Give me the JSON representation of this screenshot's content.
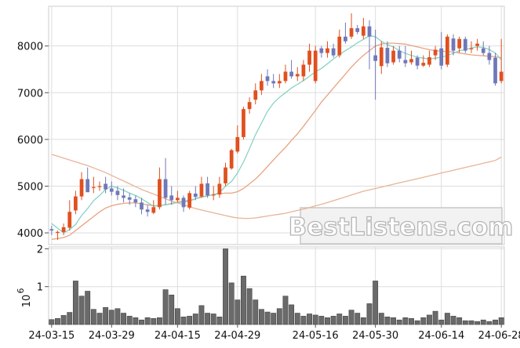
{
  "watermark": "BestListens.com",
  "chart_data": [
    {
      "type": "candlestick",
      "title": "",
      "xlabel": "",
      "ylabel": "",
      "x_tick_labels": [
        "24-03-15",
        "24-03-29",
        "24-04-15",
        "24-04-29",
        "24-05-16",
        "24-05-30",
        "24-06-14",
        "24-06-28"
      ],
      "y_ticks": [
        4000,
        5000,
        6000,
        7000,
        8000
      ],
      "ylim": [
        3750,
        8850
      ],
      "grid": true,
      "colors": {
        "up": "#e0501e",
        "down": "#6f78b8",
        "ma_short": "#86d4c4",
        "ma_mid": "#e8a482",
        "ma_long": "#e8b496",
        "grid": "#dddddd"
      },
      "dates": [
        "24-03-15",
        "24-03-18",
        "24-03-19",
        "24-03-20",
        "24-03-21",
        "24-03-22",
        "24-03-25",
        "24-03-26",
        "24-03-27",
        "24-03-28",
        "24-03-29",
        "24-04-01",
        "24-04-02",
        "24-04-03",
        "24-04-04",
        "24-04-05",
        "24-04-08",
        "24-04-09",
        "24-04-10",
        "24-04-11",
        "24-04-12",
        "24-04-15",
        "24-04-16",
        "24-04-17",
        "24-04-18",
        "24-04-19",
        "24-04-22",
        "24-04-23",
        "24-04-24",
        "24-04-25",
        "24-04-26",
        "24-04-29",
        "24-04-30",
        "24-05-01",
        "24-05-02",
        "24-05-03",
        "24-05-06",
        "24-05-07",
        "24-05-08",
        "24-05-09",
        "24-05-10",
        "24-05-13",
        "24-05-14",
        "24-05-15",
        "24-05-16",
        "24-05-17",
        "24-05-20",
        "24-05-21",
        "24-05-22",
        "24-05-23",
        "24-05-24",
        "24-05-27",
        "24-05-28",
        "24-05-29",
        "24-05-30",
        "24-05-31",
        "24-06-03",
        "24-06-04",
        "24-06-05",
        "24-06-06",
        "24-06-07",
        "24-06-10",
        "24-06-11",
        "24-06-12",
        "24-06-13",
        "24-06-14",
        "24-06-17",
        "24-06-18",
        "24-06-19",
        "24-06-20",
        "24-06-21",
        "24-06-24",
        "24-06-25",
        "24-06-26",
        "24-06-27",
        "24-06-28"
      ],
      "open": [
        4080,
        4020,
        4020,
        4110,
        4480,
        4780,
        5150,
        4980,
        4990,
        5050,
        4950,
        4900,
        4800,
        4760,
        4720,
        4650,
        4500,
        4430,
        4550,
        5150,
        4800,
        4700,
        4750,
        4540,
        4840,
        4780,
        5060,
        4800,
        4820,
        5060,
        5380,
        5740,
        6050,
        6650,
        6850,
        7050,
        7350,
        7250,
        7200,
        7250,
        7450,
        7350,
        7350,
        7600,
        7250,
        7950,
        7850,
        7950,
        7800,
        8200,
        8200,
        8380,
        8220,
        8420,
        7800,
        7570,
        7960,
        7650,
        7900,
        7700,
        7650,
        7750,
        7580,
        7600,
        7800,
        7950,
        7600,
        8160,
        7950,
        8150,
        7950,
        8000,
        7950,
        7850,
        7750,
        7250
      ],
      "close": [
        4050,
        4020,
        4120,
        4450,
        4780,
        5150,
        4870,
        4980,
        5000,
        4930,
        4880,
        4810,
        4750,
        4710,
        4650,
        4500,
        4450,
        4550,
        5150,
        4750,
        4700,
        4750,
        4550,
        4850,
        4770,
        5050,
        4800,
        4820,
        5050,
        5400,
        5770,
        6050,
        6650,
        6800,
        7050,
        7250,
        7250,
        7200,
        7250,
        7450,
        7350,
        7400,
        7600,
        7900,
        7900,
        7850,
        7950,
        7800,
        8200,
        8100,
        8380,
        8300,
        8420,
        8200,
        7680,
        7970,
        7630,
        7900,
        7730,
        7630,
        7720,
        7580,
        7640,
        7760,
        7920,
        7580,
        8200,
        7900,
        8150,
        7900,
        7950,
        8050,
        7850,
        7700,
        7200,
        7450
      ],
      "high": [
        4150,
        4050,
        4200,
        4700,
        4900,
        5300,
        5400,
        5200,
        5100,
        5200,
        5100,
        5000,
        4950,
        4850,
        4800,
        4750,
        4600,
        4700,
        5400,
        5600,
        5000,
        4900,
        4800,
        4900,
        5000,
        5200,
        5200,
        5000,
        5200,
        5500,
        5800,
        6300,
        6700,
        6900,
        7200,
        7400,
        7500,
        7400,
        7400,
        7600,
        7700,
        7550,
        7700,
        8050,
        8000,
        8000,
        8100,
        8050,
        8350,
        8500,
        8700,
        8450,
        8600,
        8550,
        8350,
        8100,
        8100,
        8000,
        8000,
        8000,
        7900,
        7800,
        7800,
        7900,
        8000,
        8300,
        8250,
        8250,
        8200,
        8200,
        8100,
        8150,
        8100,
        8000,
        7850,
        8150
      ],
      "low": [
        3950,
        3850,
        3950,
        4050,
        4400,
        4700,
        4900,
        4850,
        4900,
        4850,
        4800,
        4700,
        4650,
        4600,
        4550,
        4400,
        4350,
        4400,
        4500,
        4600,
        4600,
        4650,
        4450,
        4500,
        4700,
        4750,
        4750,
        4700,
        4750,
        5000,
        5350,
        5700,
        6000,
        6550,
        6750,
        6950,
        7150,
        7100,
        7100,
        7200,
        7300,
        7250,
        7250,
        7450,
        7200,
        7750,
        7750,
        7750,
        7750,
        8050,
        8150,
        8250,
        8150,
        7500,
        6850,
        7400,
        7550,
        7600,
        7650,
        7550,
        7600,
        7500,
        7550,
        7550,
        7700,
        7500,
        7550,
        7800,
        7850,
        7850,
        7850,
        7900,
        7800,
        7600,
        7150,
        7200
      ],
      "ma_short": [
        4200,
        4100,
        4000,
        4070,
        4180,
        4370,
        4520,
        4690,
        4800,
        4930,
        5000,
        4960,
        4910,
        4850,
        4800,
        4730,
        4650,
        4570,
        4580,
        4600,
        4620,
        4650,
        4660,
        4680,
        4730,
        4780,
        4790,
        4820,
        4860,
        5000,
        5100,
        5280,
        5520,
        5800,
        6100,
        6350,
        6600,
        6780,
        6900,
        7000,
        7100,
        7180,
        7260,
        7350,
        7450,
        7520,
        7620,
        7720,
        7820,
        7900,
        7980,
        8070,
        8140,
        8220,
        8200,
        8100,
        8030,
        7980,
        7900,
        7840,
        7800,
        7760,
        7740,
        7720,
        7740,
        7760,
        7800,
        7840,
        7900,
        7920,
        7960,
        7980,
        7970,
        7920,
        7850,
        7700
      ],
      "ma_mid": [
        3860,
        3880,
        3900,
        3950,
        4050,
        4150,
        4250,
        4350,
        4450,
        4530,
        4580,
        4610,
        4630,
        4640,
        4640,
        4620,
        4600,
        4580,
        4590,
        4600,
        4630,
        4660,
        4680,
        4700,
        4730,
        4760,
        4790,
        4820,
        4840,
        4850,
        4850,
        4880,
        4950,
        5050,
        5150,
        5280,
        5420,
        5560,
        5700,
        5830,
        5980,
        6120,
        6280,
        6450,
        6620,
        6800,
        6950,
        7100,
        7250,
        7400,
        7550,
        7680,
        7800,
        7900,
        8000,
        8040,
        8060,
        8060,
        8050,
        8040,
        8010,
        7980,
        7950,
        7920,
        7900,
        7890,
        7880,
        7870,
        7850,
        7830,
        7810,
        7800,
        7790,
        7780,
        7770,
        7750
      ],
      "ma_long": [
        5680,
        5640,
        5600,
        5560,
        5520,
        5480,
        5440,
        5390,
        5340,
        5290,
        5230,
        5170,
        5110,
        5050,
        4990,
        4930,
        4880,
        4830,
        4780,
        4730,
        4680,
        4640,
        4600,
        4560,
        4520,
        4490,
        4460,
        4430,
        4400,
        4370,
        4340,
        4320,
        4310,
        4310,
        4320,
        4340,
        4360,
        4380,
        4400,
        4420,
        4450,
        4480,
        4510,
        4540,
        4580,
        4610,
        4650,
        4690,
        4730,
        4770,
        4810,
        4850,
        4890,
        4920,
        4950,
        4980,
        5010,
        5040,
        5070,
        5100,
        5130,
        5160,
        5190,
        5220,
        5250,
        5280,
        5310,
        5340,
        5370,
        5400,
        5430,
        5460,
        5490,
        5520,
        5550,
        5620
      ]
    },
    {
      "type": "bar",
      "title": "",
      "xlabel": "",
      "ylabel": "",
      "y_ticks": [
        1,
        2
      ],
      "y_unit_label": "10",
      "y_unit_exponent": "6",
      "ylim": [
        0,
        2.05
      ],
      "color": "#6a6a6a",
      "volume_millions": [
        0.13,
        0.16,
        0.24,
        0.32,
        1.15,
        0.75,
        0.88,
        0.4,
        0.3,
        0.45,
        0.38,
        0.42,
        0.3,
        0.22,
        0.18,
        0.12,
        0.18,
        0.16,
        0.18,
        0.92,
        0.78,
        0.42,
        0.2,
        0.22,
        0.28,
        0.5,
        0.3,
        0.28,
        0.2,
        2.0,
        1.1,
        0.65,
        1.28,
        0.95,
        0.65,
        0.4,
        0.33,
        0.3,
        0.42,
        0.75,
        0.52,
        0.3,
        0.22,
        0.28,
        0.25,
        0.22,
        0.18,
        0.22,
        0.28,
        0.22,
        0.38,
        0.3,
        0.18,
        0.55,
        1.15,
        0.3,
        0.2,
        0.18,
        0.12,
        0.18,
        0.16,
        0.1,
        0.18,
        0.25,
        0.35,
        0.12,
        0.3,
        0.22,
        0.18,
        0.1,
        0.1,
        0.08,
        0.12,
        0.08,
        0.12,
        0.18
      ]
    }
  ]
}
